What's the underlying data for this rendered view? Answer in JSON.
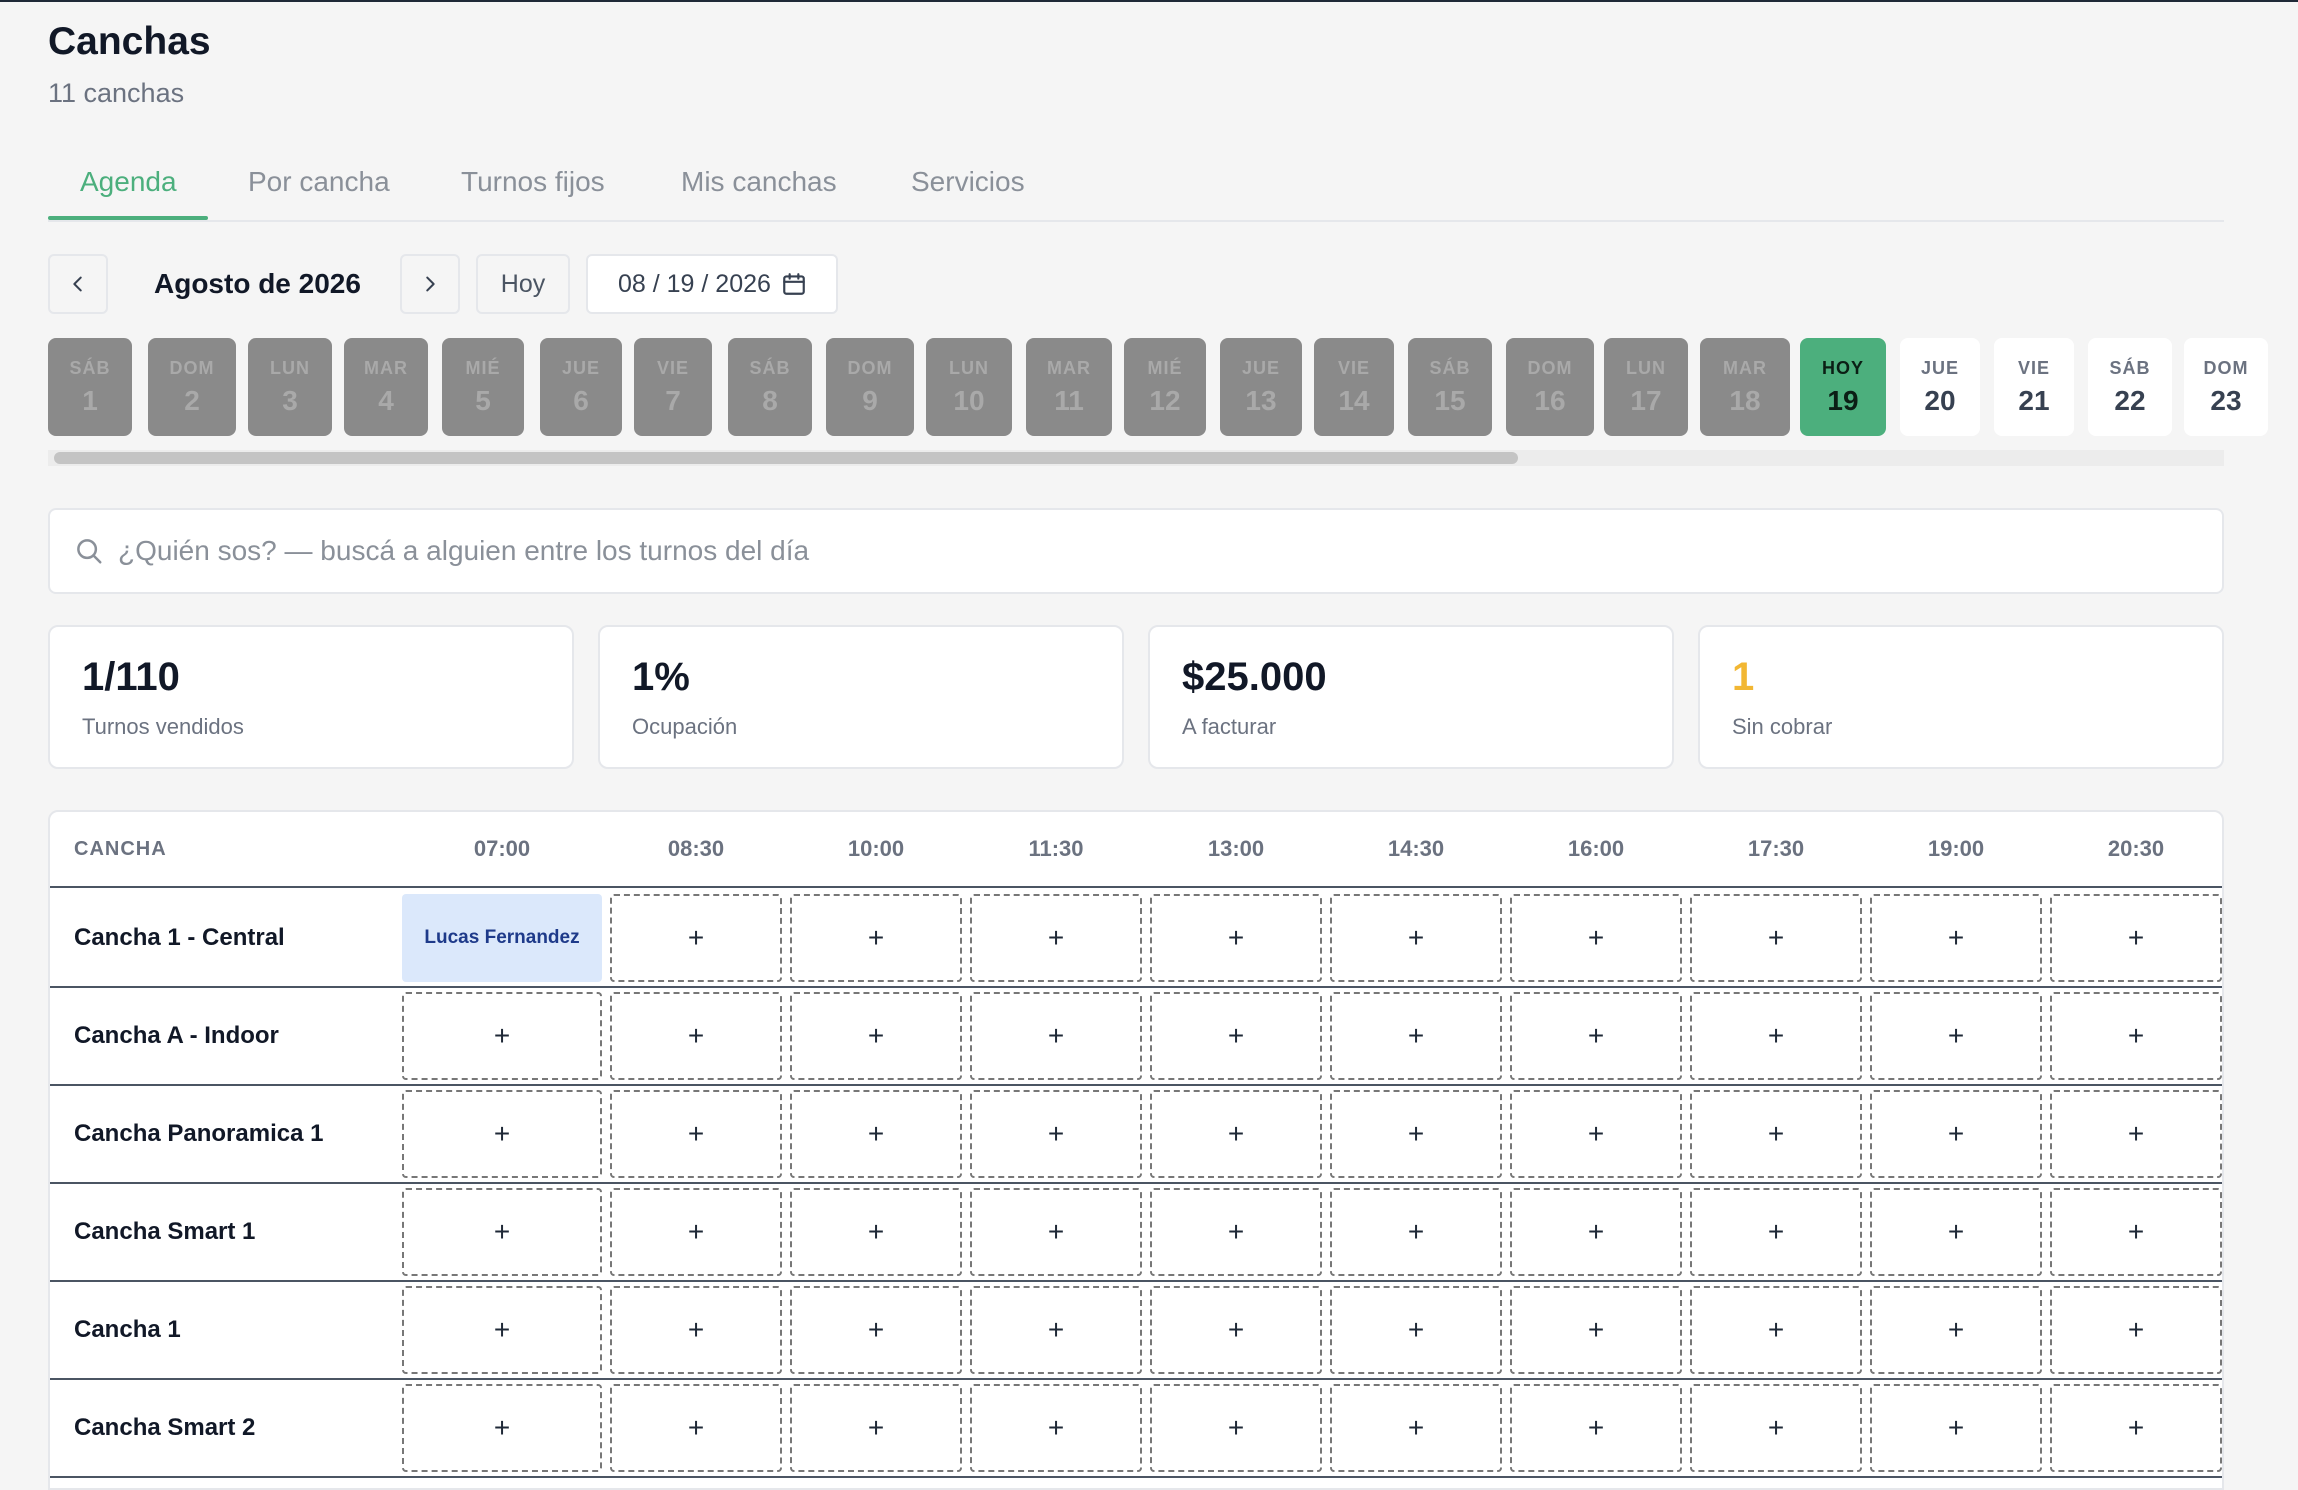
{
  "header": {
    "title": "Canchas",
    "subtitle": "11 canchas"
  },
  "tabs": [
    "Agenda",
    "Por cancha",
    "Turnos fijos",
    "Mis canchas",
    "Servicios"
  ],
  "active_tab": "Agenda",
  "calendar": {
    "month_label": "Agosto de 2026",
    "today_label": "Hoy",
    "date_value": "08 / 19 / 2026",
    "days": [
      {
        "dow": "SÁB",
        "num": "1",
        "state": "past"
      },
      {
        "dow": "DOM",
        "num": "2",
        "state": "past"
      },
      {
        "dow": "LUN",
        "num": "3",
        "state": "past"
      },
      {
        "dow": "MAR",
        "num": "4",
        "state": "past"
      },
      {
        "dow": "MIÉ",
        "num": "5",
        "state": "past"
      },
      {
        "dow": "JUE",
        "num": "6",
        "state": "past"
      },
      {
        "dow": "VIE",
        "num": "7",
        "state": "past"
      },
      {
        "dow": "SÁB",
        "num": "8",
        "state": "past"
      },
      {
        "dow": "DOM",
        "num": "9",
        "state": "past"
      },
      {
        "dow": "LUN",
        "num": "10",
        "state": "past"
      },
      {
        "dow": "MAR",
        "num": "11",
        "state": "past"
      },
      {
        "dow": "MIÉ",
        "num": "12",
        "state": "past"
      },
      {
        "dow": "JUE",
        "num": "13",
        "state": "past"
      },
      {
        "dow": "VIE",
        "num": "14",
        "state": "past"
      },
      {
        "dow": "SÁB",
        "num": "15",
        "state": "past"
      },
      {
        "dow": "DOM",
        "num": "16",
        "state": "past"
      },
      {
        "dow": "LUN",
        "num": "17",
        "state": "past"
      },
      {
        "dow": "MAR",
        "num": "18",
        "state": "past"
      },
      {
        "dow": "HOY",
        "num": "19",
        "state": "today"
      },
      {
        "dow": "JUE",
        "num": "20",
        "state": "future"
      },
      {
        "dow": "VIE",
        "num": "21",
        "state": "future"
      },
      {
        "dow": "SÁB",
        "num": "22",
        "state": "future"
      },
      {
        "dow": "DOM",
        "num": "23",
        "state": "future"
      }
    ]
  },
  "search": {
    "placeholder": "¿Quién sos? — buscá a alguien entre los turnos del día",
    "value": ""
  },
  "stats": [
    {
      "value": "1/110",
      "label": "Turnos vendidos",
      "color": "#111827"
    },
    {
      "value": "1%",
      "label": "Ocupación",
      "color": "#111827"
    },
    {
      "value": "$25.000",
      "label": "A facturar",
      "color": "#111827"
    },
    {
      "value": "1",
      "label": "Sin cobrar",
      "color": "#f2b733"
    }
  ],
  "schedule": {
    "court_header": "CANCHA",
    "times": [
      "07:00",
      "08:30",
      "10:00",
      "11:30",
      "13:00",
      "14:30",
      "16:00",
      "17:30",
      "19:00",
      "20:30"
    ],
    "add_symbol": "+",
    "rows": [
      {
        "court": "Cancha 1 - Central",
        "bookings": {
          "0": "Lucas Fernandez"
        }
      },
      {
        "court": "Cancha A - Indoor",
        "bookings": {}
      },
      {
        "court": "Cancha Panoramica 1",
        "bookings": {}
      },
      {
        "court": "Cancha Smart 1",
        "bookings": {}
      },
      {
        "court": "Cancha 1",
        "bookings": {}
      },
      {
        "court": "Cancha Smart 2",
        "bookings": {}
      }
    ]
  },
  "colors": {
    "accent": "#4caf7d",
    "booked_bg": "#dbe8fb",
    "warning": "#f2b733"
  }
}
